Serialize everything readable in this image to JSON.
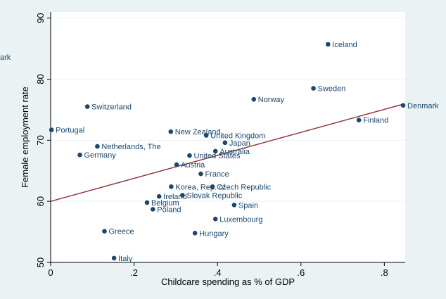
{
  "chart_data": {
    "type": "scatter",
    "xlabel": "Childcare spending as % of GDP",
    "ylabel": "Female employment rate",
    "xlim": [
      0,
      0.85
    ],
    "ylim": [
      50,
      91
    ],
    "xticks": [
      0,
      0.2,
      0.4,
      0.6,
      0.8
    ],
    "xtick_labels": [
      "0",
      ".2",
      ".4",
      ".6",
      ".8"
    ],
    "yticks": [
      50,
      60,
      70,
      80,
      90
    ],
    "ytick_labels": [
      "50",
      "60",
      "70",
      "80",
      "90"
    ],
    "grid": "horizontal",
    "background_color": "#eaf2f3",
    "plot_background_color": "#ffffff",
    "marker_color": "#1a476f",
    "fit_line_color": "#90353b",
    "clipped_label_fragment": "ark",
    "points": [
      {
        "label": "Iceland",
        "x": 0.665,
        "y": 85.7
      },
      {
        "label": "Sweden",
        "x": 0.63,
        "y": 78.5
      },
      {
        "label": "Norway",
        "x": 0.487,
        "y": 76.7
      },
      {
        "label": "Denmark",
        "x": 0.845,
        "y": 75.7
      },
      {
        "label": "Switzerland",
        "x": 0.088,
        "y": 75.5
      },
      {
        "label": "Finland",
        "x": 0.739,
        "y": 73.3
      },
      {
        "label": "Portugal",
        "x": 0.002,
        "y": 71.7
      },
      {
        "label": "New Zealand",
        "x": 0.288,
        "y": 71.4
      },
      {
        "label": "United Kingdom",
        "x": 0.373,
        "y": 70.8
      },
      {
        "label": "Japan",
        "x": 0.418,
        "y": 69.6
      },
      {
        "label": "Netherlands, The",
        "x": 0.112,
        "y": 69.0
      },
      {
        "label": "Australia",
        "x": 0.395,
        "y": 68.2
      },
      {
        "label": "Germany",
        "x": 0.07,
        "y": 67.6
      },
      {
        "label": "United States",
        "x": 0.333,
        "y": 67.5
      },
      {
        "label": "Austria",
        "x": 0.302,
        "y": 66.0
      },
      {
        "label": "France",
        "x": 0.36,
        "y": 64.5
      },
      {
        "label": "Korea, Rep. of",
        "x": 0.289,
        "y": 62.4
      },
      {
        "label": "Czech Republic",
        "x": 0.388,
        "y": 62.4
      },
      {
        "label": "Ireland",
        "x": 0.26,
        "y": 60.8
      },
      {
        "label": "Slovak Republic",
        "x": 0.316,
        "y": 61.0
      },
      {
        "label": "Belgium",
        "x": 0.231,
        "y": 59.8
      },
      {
        "label": "Spain",
        "x": 0.44,
        "y": 59.4
      },
      {
        "label": "Poland",
        "x": 0.245,
        "y": 58.7
      },
      {
        "label": "Luxembourg",
        "x": 0.395,
        "y": 57.1
      },
      {
        "label": "Greece",
        "x": 0.129,
        "y": 55.1
      },
      {
        "label": "Hungary",
        "x": 0.346,
        "y": 54.8
      },
      {
        "label": "Italy",
        "x": 0.152,
        "y": 50.7
      }
    ],
    "fit_line": {
      "x": [
        0,
        0.845
      ],
      "y": [
        60.0,
        75.9
      ]
    }
  }
}
